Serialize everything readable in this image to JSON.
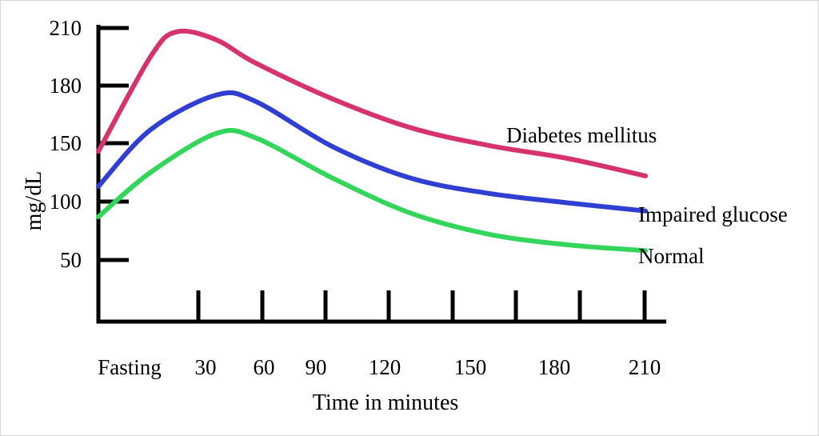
{
  "chart_data": {
    "type": "line",
    "title": "",
    "xlabel": "Time in minutes",
    "ylabel": "mg/dL",
    "x_tick_labels": [
      "Fasting",
      "30",
      "60",
      "90",
      "120",
      "150",
      "180",
      "210"
    ],
    "y_ticks": [
      210,
      180,
      150,
      100,
      50
    ],
    "ylim": [
      40,
      210
    ],
    "grid": false,
    "legend": "inline labels at line ends",
    "series": [
      {
        "name": "Diabetes mellitus",
        "color": "#d6336c",
        "points": [
          {
            "x": 0,
            "y": 143
          },
          {
            "x": 20,
            "y": 195
          },
          {
            "x": 30,
            "y": 208
          },
          {
            "x": 45,
            "y": 204
          },
          {
            "x": 60,
            "y": 192
          },
          {
            "x": 90,
            "y": 173
          },
          {
            "x": 120,
            "y": 158
          },
          {
            "x": 150,
            "y": 148
          },
          {
            "x": 180,
            "y": 137
          },
          {
            "x": 210,
            "y": 122
          }
        ]
      },
      {
        "name": "Impaired glucose",
        "color": "#2f3fd1",
        "points": [
          {
            "x": 0,
            "y": 113
          },
          {
            "x": 20,
            "y": 157
          },
          {
            "x": 45,
            "y": 175
          },
          {
            "x": 60,
            "y": 172
          },
          {
            "x": 90,
            "y": 147
          },
          {
            "x": 120,
            "y": 120
          },
          {
            "x": 150,
            "y": 107
          },
          {
            "x": 180,
            "y": 99
          },
          {
            "x": 210,
            "y": 92
          }
        ]
      },
      {
        "name": "Normal",
        "color": "#33d65a",
        "points": [
          {
            "x": 0,
            "y": 87
          },
          {
            "x": 20,
            "y": 125
          },
          {
            "x": 45,
            "y": 155
          },
          {
            "x": 60,
            "y": 153
          },
          {
            "x": 90,
            "y": 120
          },
          {
            "x": 120,
            "y": 90
          },
          {
            "x": 150,
            "y": 72
          },
          {
            "x": 180,
            "y": 63
          },
          {
            "x": 210,
            "y": 58
          }
        ]
      }
    ]
  }
}
